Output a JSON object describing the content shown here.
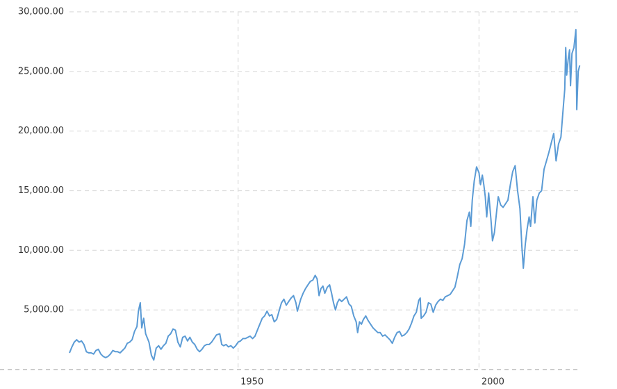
{
  "chart_data": {
    "type": "line",
    "color": "#5b9bd5",
    "grid": true,
    "xlim": [
      1915,
      2021
    ],
    "xticks": [
      1950,
      2000
    ],
    "ylim": [
      0,
      30000
    ],
    "yticks": [
      {
        "value": 5000,
        "label": "5,000.00"
      },
      {
        "value": 10000,
        "label": "10,000.00"
      },
      {
        "value": 15000,
        "label": "15,000.00"
      },
      {
        "value": 20000,
        "label": "20,000.00"
      },
      {
        "value": 25000,
        "label": "25,000.00"
      },
      {
        "value": 30000,
        "label": "30,000.00"
      }
    ],
    "x": [
      1915.0,
      1915.5,
      1916.0,
      1916.5,
      1917.0,
      1917.5,
      1918.0,
      1918.5,
      1919.0,
      1919.5,
      1920.0,
      1920.5,
      1921.0,
      1921.5,
      1922.0,
      1922.5,
      1923.0,
      1923.5,
      1924.0,
      1924.5,
      1925.0,
      1925.5,
      1926.0,
      1926.5,
      1927.0,
      1927.5,
      1928.0,
      1928.5,
      1929.0,
      1929.3,
      1929.7,
      1930.0,
      1930.4,
      1930.8,
      1931.5,
      1932.0,
      1932.5,
      1933.0,
      1933.5,
      1934.0,
      1934.5,
      1935.0,
      1935.5,
      1936.0,
      1936.5,
      1937.0,
      1937.5,
      1938.0,
      1938.5,
      1939.0,
      1939.5,
      1940.0,
      1940.5,
      1941.0,
      1941.5,
      1942.0,
      1942.5,
      1943.0,
      1943.5,
      1944.0,
      1944.5,
      1945.0,
      1945.5,
      1946.2,
      1946.6,
      1947.0,
      1947.5,
      1948.0,
      1948.5,
      1949.0,
      1949.5,
      1950.0,
      1950.5,
      1951.0,
      1951.5,
      1952.0,
      1952.5,
      1953.0,
      1953.5,
      1954.0,
      1954.5,
      1955.0,
      1955.5,
      1956.0,
      1956.5,
      1957.0,
      1957.5,
      1958.0,
      1958.5,
      1959.0,
      1959.5,
      1960.0,
      1960.5,
      1961.0,
      1961.5,
      1962.0,
      1962.3,
      1962.8,
      1963.0,
      1963.5,
      1964.0,
      1964.5,
      1965.0,
      1965.5,
      1966.0,
      1966.4,
      1966.8,
      1967.2,
      1967.6,
      1968.0,
      1968.5,
      1969.0,
      1969.4,
      1969.8,
      1970.2,
      1970.6,
      1971.0,
      1971.5,
      1972.0,
      1972.5,
      1973.0,
      1973.5,
      1974.0,
      1974.5,
      1974.8,
      1975.2,
      1975.6,
      1976.0,
      1976.5,
      1977.0,
      1977.5,
      1978.0,
      1978.5,
      1979.0,
      1979.5,
      1980.0,
      1980.5,
      1981.0,
      1981.5,
      1982.0,
      1982.5,
      1983.0,
      1983.5,
      1984.0,
      1984.5,
      1985.0,
      1985.5,
      1986.0,
      1986.5,
      1987.0,
      1987.5,
      1987.8,
      1988.0,
      1988.5,
      1989.0,
      1989.5,
      1990.0,
      1990.5,
      1991.0,
      1991.5,
      1992.0,
      1992.5,
      1993.0,
      1993.5,
      1994.0,
      1994.5,
      1995.0,
      1995.5,
      1996.0,
      1996.5,
      1997.0,
      1997.5,
      1998.0,
      1998.3,
      1998.6,
      1999.0,
      1999.5,
      2000.0,
      2000.3,
      2000.7,
      2001.0,
      2001.3,
      2001.6,
      2002.0,
      2002.5,
      2002.8,
      2003.2,
      2003.6,
      2004.0,
      2004.5,
      2005.0,
      2005.5,
      2006.0,
      2006.5,
      2007.0,
      2007.5,
      2008.0,
      2008.5,
      2008.9,
      2009.2,
      2009.6,
      2010.0,
      2010.4,
      2010.7,
      2011.2,
      2011.6,
      2012.0,
      2012.5,
      2013.0,
      2013.5,
      2014.0,
      2014.5,
      2015.0,
      2015.5,
      2016.0,
      2016.5,
      2017.0,
      2017.5,
      2017.8,
      2018.0,
      2018.2,
      2018.5,
      2018.8,
      2019.0,
      2019.3,
      2019.7,
      2020.1,
      2020.3,
      2020.6,
      2020.9
    ],
    "values": [
      1400,
      1900,
      2300,
      2500,
      2300,
      2400,
      2100,
      1500,
      1400,
      1400,
      1300,
      1600,
      1700,
      1300,
      1100,
      1000,
      1100,
      1300,
      1600,
      1500,
      1500,
      1400,
      1600,
      1800,
      2200,
      2300,
      2500,
      3200,
      3600,
      4900,
      5600,
      3500,
      4300,
      3000,
      2300,
      1200,
      800,
      1800,
      2000,
      1700,
      2000,
      2200,
      2800,
      3000,
      3400,
      3300,
      2300,
      1900,
      2700,
      2800,
      2400,
      2700,
      2300,
      2100,
      1700,
      1500,
      1700,
      2000,
      2100,
      2100,
      2300,
      2600,
      2900,
      3000,
      2100,
      2000,
      2100,
      1900,
      2000,
      1800,
      2000,
      2300,
      2400,
      2600,
      2600,
      2700,
      2800,
      2600,
      2800,
      3300,
      3800,
      4300,
      4500,
      4900,
      4500,
      4600,
      4000,
      4200,
      4900,
      5600,
      5900,
      5400,
      5700,
      6000,
      6200,
      5600,
      4900,
      5600,
      5900,
      6400,
      6800,
      7100,
      7400,
      7500,
      7900,
      7600,
      6200,
      6800,
      7000,
      6400,
      6900,
      7100,
      6400,
      5600,
      5000,
      5600,
      5900,
      5700,
      5900,
      6100,
      5500,
      5300,
      4500,
      4000,
      3100,
      4000,
      3800,
      4200,
      4500,
      4100,
      3800,
      3500,
      3300,
      3100,
      3100,
      2800,
      2900,
      2700,
      2500,
      2200,
      2700,
      3100,
      3200,
      2800,
      2900,
      3100,
      3400,
      3900,
      4500,
      4800,
      5800,
      6000,
      4300,
      4500,
      4800,
      5600,
      5500,
      4800,
      5400,
      5700,
      5900,
      5800,
      6100,
      6200,
      6300,
      6600,
      6900,
      7800,
      8800,
      9300,
      10500,
      12500,
      13200,
      12000,
      14200,
      15800,
      17000,
      16500,
      15500,
      16300,
      15500,
      14500,
      12800,
      14800,
      12500,
      10800,
      11500,
      13000,
      14500,
      13800,
      13600,
      13900,
      14200,
      15500,
      16600,
      17100,
      15000,
      13500,
      10300,
      8500,
      10500,
      11800,
      12800,
      12000,
      14500,
      12300,
      14200,
      14800,
      15000,
      16800,
      17500,
      18200,
      19000,
      19800,
      17500,
      18900,
      19500,
      22000,
      23500,
      27000,
      24700,
      26000,
      26800,
      23800,
      26500,
      27000,
      28500,
      21800,
      25000,
      25500
    ]
  }
}
